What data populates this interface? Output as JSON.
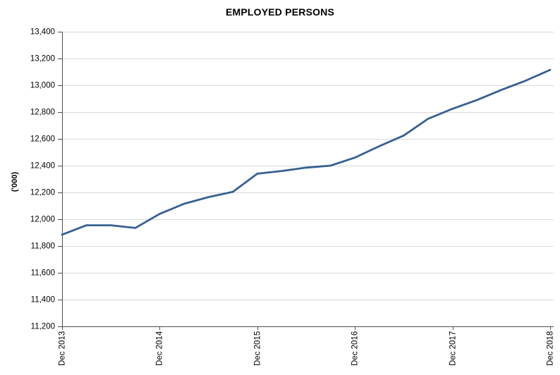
{
  "chart_data": {
    "type": "line",
    "title": "EMPLOYED PERSONS",
    "ylabel": "('000)",
    "xlabel": "",
    "categories": [
      "Dec 2013",
      "Mar 2014",
      "Jun 2014",
      "Sep 2014",
      "Dec 2014",
      "Mar 2015",
      "Jun 2015",
      "Sep 2015",
      "Dec 2015",
      "Mar 2016",
      "Jun 2016",
      "Sep 2016",
      "Dec 2016",
      "Mar 2017",
      "Jun 2017",
      "Sep 2017",
      "Dec 2017",
      "Mar 2018",
      "Jun 2018",
      "Sep 2018",
      "Dec 2018"
    ],
    "values": [
      11885,
      11955,
      11955,
      11935,
      12040,
      12115,
      12165,
      12205,
      12340,
      12360,
      12385,
      12400,
      12460,
      12545,
      12625,
      12750,
      12825,
      12890,
      12965,
      13035,
      13115
    ],
    "ylim": [
      11200,
      13400
    ],
    "ytick_step": 200,
    "y_tick_labels": [
      "13,400",
      "13,200",
      "13,000",
      "12,800",
      "12,600",
      "12,400",
      "12,200",
      "12,000",
      "11,800",
      "11,600",
      "11,400",
      "11,200"
    ],
    "x_tick_labels": [
      "Dec 2013",
      "Dec 2014",
      "Dec 2015",
      "Dec 2016",
      "Dec 2017",
      "Dec 2018"
    ],
    "x_tick_indices": [
      0,
      4,
      8,
      12,
      16,
      20
    ],
    "grid": "horizontal",
    "legend": "none",
    "line_color": "#376092",
    "gridline_color": "#D9D9D9",
    "axis_color": "#4D4D4D",
    "text_color": "#000000",
    "background": "#FFFFFF"
  }
}
